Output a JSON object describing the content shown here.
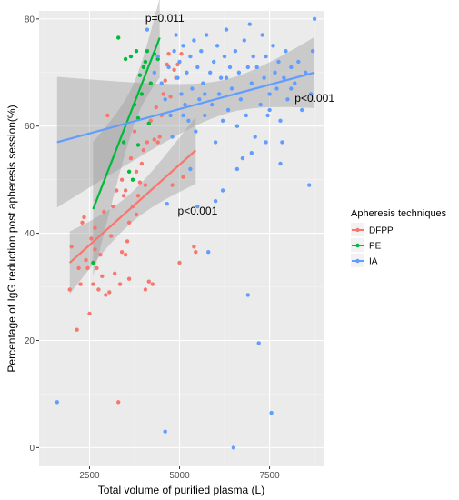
{
  "chart_data": {
    "type": "scatter",
    "title": "",
    "xlabel": "Total volume of purified plasma (L)",
    "ylabel": "Percentage of IgG reduction post apheresis session(%)",
    "xlim": [
      1100,
      9000
    ],
    "ylim": [
      -3.5,
      81.5
    ],
    "x_ticks": [
      2500,
      5000,
      7500
    ],
    "y_ticks": [
      0,
      20,
      40,
      60,
      80
    ],
    "x_tick_labels": [
      "2500",
      "5000",
      "7500"
    ],
    "y_tick_labels": [
      "0",
      "20",
      "40",
      "60",
      "80"
    ],
    "grid": true,
    "background": "#ebebeb",
    "legend": {
      "title": "Apheresis techniques",
      "placement": "right"
    },
    "series": [
      {
        "name": "DFPP",
        "color": "#f8766d",
        "points": [
          [
            1950,
            29.5
          ],
          [
            2000,
            37.5
          ],
          [
            2150,
            22
          ],
          [
            2200,
            33.5
          ],
          [
            2250,
            30.5
          ],
          [
            2300,
            42
          ],
          [
            2350,
            43
          ],
          [
            2400,
            35
          ],
          [
            2450,
            33.5
          ],
          [
            2500,
            25
          ],
          [
            2550,
            39
          ],
          [
            2600,
            30.5
          ],
          [
            2650,
            41
          ],
          [
            2650,
            37
          ],
          [
            2700,
            33.5
          ],
          [
            2750,
            29.5
          ],
          [
            2800,
            36
          ],
          [
            2850,
            32
          ],
          [
            2900,
            44
          ],
          [
            2950,
            28.5
          ],
          [
            3000,
            62
          ],
          [
            3050,
            29
          ],
          [
            3100,
            39.5
          ],
          [
            3150,
            45
          ],
          [
            3200,
            32.5
          ],
          [
            3250,
            48
          ],
          [
            3300,
            8.5
          ],
          [
            3350,
            30.5
          ],
          [
            3400,
            50
          ],
          [
            3450,
            47
          ],
          [
            3500,
            36
          ],
          [
            3550,
            38.5
          ],
          [
            3600,
            31.5
          ],
          [
            3600,
            42
          ],
          [
            3650,
            54
          ],
          [
            3700,
            45
          ],
          [
            3750,
            59
          ],
          [
            3800,
            51.5
          ],
          [
            3800,
            43.5
          ],
          [
            3850,
            47
          ],
          [
            3900,
            49.5
          ],
          [
            3950,
            53
          ],
          [
            4000,
            55.5
          ],
          [
            4050,
            29.5
          ],
          [
            4050,
            49
          ],
          [
            4100,
            57
          ],
          [
            4150,
            31
          ],
          [
            4200,
            61
          ],
          [
            4250,
            30.5
          ],
          [
            4300,
            57.5
          ],
          [
            4350,
            63.5
          ],
          [
            4400,
            57
          ],
          [
            4450,
            58
          ],
          [
            4500,
            62
          ],
          [
            4550,
            66
          ],
          [
            4600,
            68.5
          ],
          [
            4650,
            71.5
          ],
          [
            4700,
            73.5
          ],
          [
            4750,
            65.5
          ],
          [
            4800,
            49
          ],
          [
            4850,
            70.5
          ],
          [
            4900,
            69
          ],
          [
            4950,
            71.5
          ],
          [
            5000,
            34.5
          ],
          [
            5050,
            73.5
          ],
          [
            5100,
            50.5
          ],
          [
            5400,
            37.5
          ],
          [
            5450,
            36.5
          ],
          [
            3400,
            36.5
          ],
          [
            3500,
            48
          ]
        ],
        "trend": [
          [
            1950,
            34.5
          ],
          [
            5450,
            55.5
          ]
        ],
        "p_value": "p<0.001"
      },
      {
        "name": "PE",
        "color": "#00ba38",
        "points": [
          [
            2600,
            34.5
          ],
          [
            3300,
            76.5
          ],
          [
            3450,
            57
          ],
          [
            3500,
            72.5
          ],
          [
            3600,
            51.5
          ],
          [
            3650,
            73
          ],
          [
            3700,
            50
          ],
          [
            3750,
            64
          ],
          [
            3800,
            74
          ],
          [
            3850,
            61.5
          ],
          [
            3850,
            56.5
          ],
          [
            3900,
            69.5
          ],
          [
            3950,
            66
          ],
          [
            4000,
            71
          ],
          [
            4050,
            72
          ],
          [
            4100,
            74
          ],
          [
            4150,
            60.5
          ],
          [
            4200,
            68
          ],
          [
            4300,
            73.5
          ],
          [
            4400,
            72.5
          ]
        ],
        "trend": [
          [
            2600,
            44.5
          ],
          [
            4450,
            76.5
          ]
        ],
        "p_value": "p=0.011"
      },
      {
        "name": "IA",
        "color": "#619cff",
        "points": [
          [
            1600,
            8.5
          ],
          [
            4600,
            3
          ],
          [
            4650,
            45.5
          ],
          [
            4100,
            78
          ],
          [
            4300,
            70
          ],
          [
            4400,
            73
          ],
          [
            4500,
            68
          ],
          [
            4600,
            65
          ],
          [
            4700,
            71
          ],
          [
            4750,
            62
          ],
          [
            4800,
            58
          ],
          [
            4850,
            74
          ],
          [
            4900,
            77
          ],
          [
            4950,
            69
          ],
          [
            5000,
            72
          ],
          [
            5050,
            66
          ],
          [
            5100,
            75
          ],
          [
            5150,
            64
          ],
          [
            5200,
            70
          ],
          [
            5250,
            61
          ],
          [
            5300,
            73
          ],
          [
            5350,
            67
          ],
          [
            5400,
            76
          ],
          [
            5450,
            59
          ],
          [
            5500,
            71
          ],
          [
            5550,
            65
          ],
          [
            5600,
            74
          ],
          [
            5650,
            68
          ],
          [
            5700,
            62
          ],
          [
            5750,
            77
          ],
          [
            5800,
            36.5
          ],
          [
            5850,
            70
          ],
          [
            5900,
            64
          ],
          [
            5950,
            72
          ],
          [
            6000,
            57
          ],
          [
            6050,
            75
          ],
          [
            6100,
            66
          ],
          [
            6150,
            69
          ],
          [
            6200,
            61
          ],
          [
            6250,
            73
          ],
          [
            6300,
            78
          ],
          [
            6350,
            63
          ],
          [
            6400,
            71
          ],
          [
            6450,
            67
          ],
          [
            6500,
            0
          ],
          [
            6550,
            74
          ],
          [
            6600,
            60
          ],
          [
            6650,
            70
          ],
          [
            6700,
            65
          ],
          [
            6750,
            54
          ],
          [
            6800,
            76
          ],
          [
            6850,
            62
          ],
          [
            6900,
            28.5
          ],
          [
            6950,
            79
          ],
          [
            7000,
            68
          ],
          [
            7050,
            73
          ],
          [
            7100,
            58
          ],
          [
            7150,
            71
          ],
          [
            7200,
            19.5
          ],
          [
            7250,
            64
          ],
          [
            7300,
            77
          ],
          [
            7350,
            69
          ],
          [
            7400,
            73
          ],
          [
            7450,
            62
          ],
          [
            7500,
            66
          ],
          [
            7550,
            6.5
          ],
          [
            7600,
            75
          ],
          [
            7650,
            70
          ],
          [
            7700,
            67
          ],
          [
            7750,
            72
          ],
          [
            7800,
            61
          ],
          [
            7850,
            57
          ],
          [
            7900,
            69
          ],
          [
            7950,
            74
          ],
          [
            8000,
            65
          ],
          [
            8100,
            71
          ],
          [
            8200,
            68
          ],
          [
            8300,
            72
          ],
          [
            8400,
            63
          ],
          [
            8500,
            70
          ],
          [
            8600,
            49
          ],
          [
            8700,
            74
          ],
          [
            8750,
            80
          ],
          [
            8650,
            66
          ],
          [
            5300,
            52
          ],
          [
            5500,
            45
          ],
          [
            6000,
            46
          ],
          [
            6200,
            48
          ],
          [
            6600,
            52
          ],
          [
            7000,
            55
          ],
          [
            7400,
            57
          ],
          [
            7800,
            53
          ],
          [
            5100,
            62
          ],
          [
            5700,
            66
          ],
          [
            6300,
            69
          ],
          [
            6900,
            71
          ],
          [
            7500,
            63
          ],
          [
            8100,
            67
          ]
        ],
        "trend": [
          [
            1600,
            57
          ],
          [
            8750,
            70
          ]
        ],
        "p_value": "p<0.001"
      }
    ],
    "annotations": [
      "p=0.011",
      "p<0.001",
      "p<0.001"
    ]
  }
}
